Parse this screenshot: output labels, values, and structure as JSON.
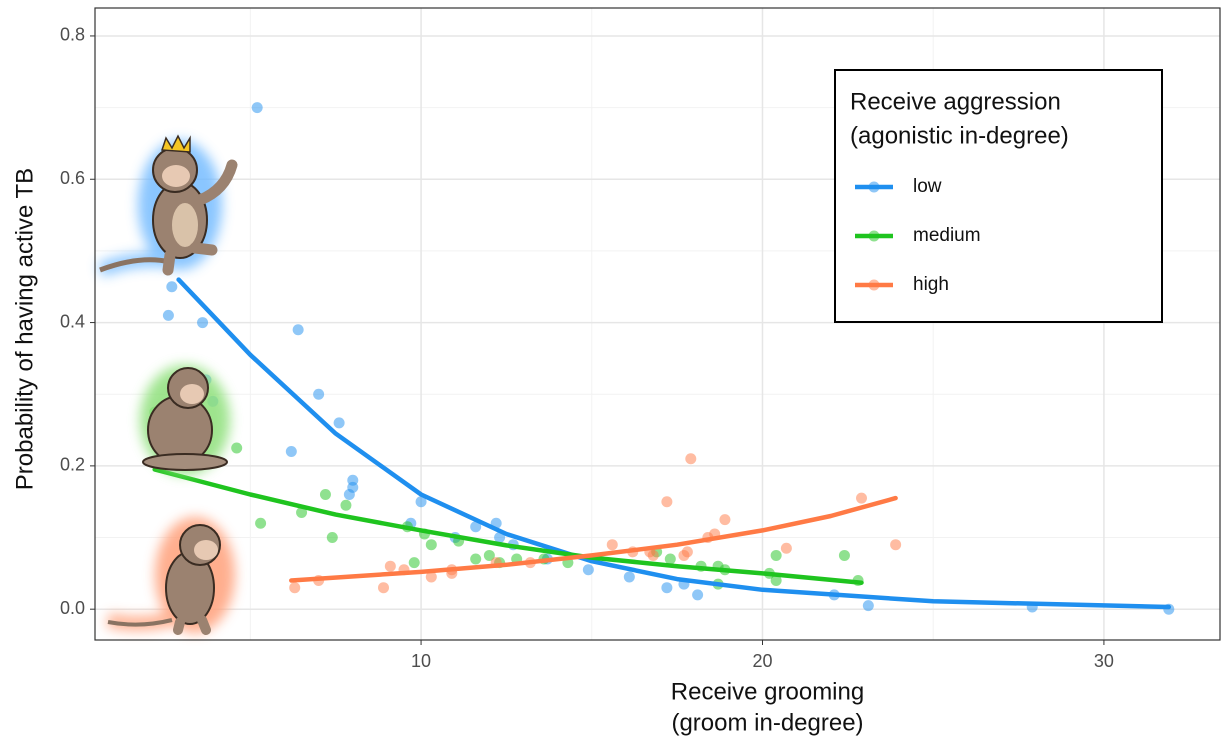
{
  "chart_data": {
    "type": "scatter",
    "x_label": [
      "Receive grooming",
      "(groom in-degree)"
    ],
    "y_label": "Probability of having active TB",
    "legend_title": [
      "Receive aggression",
      "(agonistic in-degree)"
    ],
    "legend_position": "top-right",
    "grid": true,
    "xlim": [
      0.45,
      33.4
    ],
    "ylim": [
      -0.043,
      0.839
    ],
    "xticks": [
      10,
      20,
      30
    ],
    "yticks": [
      {
        "value": 0,
        "label": "0.0"
      },
      0.2,
      0.4,
      0.6,
      0.8
    ],
    "x_minor_ticks": [
      5,
      15,
      25
    ],
    "y_minor_ticks": [
      0.1,
      0.3,
      0.5,
      0.7
    ],
    "series": [
      {
        "name": "low",
        "color": "#1f8fef",
        "x": [
          5.2,
          2.7,
          2.6,
          3.6,
          6.4,
          3.7,
          3.9,
          7.0,
          7.6,
          6.2,
          8.0,
          8.0,
          7.9,
          9.7,
          10.0,
          11.6,
          12.2,
          12.3,
          12.7,
          11.0,
          13.7,
          14.9,
          16.1,
          17.2,
          17.7,
          18.1,
          22.1,
          23.1,
          27.9,
          31.9
        ],
        "y": [
          0.7,
          0.45,
          0.41,
          0.4,
          0.39,
          0.32,
          0.29,
          0.3,
          0.26,
          0.22,
          0.18,
          0.17,
          0.16,
          0.12,
          0.15,
          0.115,
          0.12,
          0.1,
          0.09,
          0.1,
          0.07,
          0.055,
          0.045,
          0.03,
          0.035,
          0.02,
          0.02,
          0.005,
          0.003,
          0.0
        ],
        "fit_x": [
          2.9,
          5,
          7.5,
          10,
          12.5,
          15,
          17.5,
          20,
          25,
          31.9
        ],
        "fit_y": [
          0.46,
          0.355,
          0.245,
          0.16,
          0.105,
          0.067,
          0.042,
          0.027,
          0.011,
          0.003
        ]
      },
      {
        "name": "medium",
        "color": "#1fc41f",
        "x": [
          2.2,
          4.6,
          5.3,
          6.5,
          7.2,
          7.4,
          7.8,
          9.6,
          9.8,
          10.3,
          10.1,
          11.1,
          11.6,
          12.0,
          12.3,
          12.8,
          13.6,
          14.3,
          16.9,
          17.3,
          18.2,
          18.7,
          18.9,
          18.7,
          20.2,
          20.4,
          20.4,
          22.4,
          22.8
        ],
        "y": [
          0.275,
          0.225,
          0.12,
          0.135,
          0.16,
          0.1,
          0.145,
          0.115,
          0.065,
          0.09,
          0.105,
          0.095,
          0.07,
          0.075,
          0.065,
          0.07,
          0.07,
          0.065,
          0.08,
          0.07,
          0.06,
          0.06,
          0.055,
          0.035,
          0.05,
          0.075,
          0.04,
          0.075,
          0.04
        ],
        "fit_x": [
          2.2,
          5,
          7.5,
          10,
          12.5,
          15,
          17.5,
          20,
          22.9
        ],
        "fit_y": [
          0.195,
          0.16,
          0.132,
          0.11,
          0.089,
          0.072,
          0.06,
          0.05,
          0.037
        ]
      },
      {
        "name": "high",
        "color": "#ff7a45",
        "x": [
          6.3,
          7.0,
          8.9,
          9.1,
          9.5,
          10.3,
          10.9,
          10.9,
          12.2,
          13.2,
          15.6,
          16.2,
          16.7,
          16.8,
          17.2,
          17.7,
          17.8,
          17.9,
          18.4,
          18.6,
          18.9,
          20.7,
          22.9,
          23.9
        ],
        "y": [
          0.03,
          0.04,
          0.03,
          0.06,
          0.055,
          0.045,
          0.05,
          0.055,
          0.065,
          0.065,
          0.09,
          0.08,
          0.08,
          0.075,
          0.15,
          0.075,
          0.08,
          0.21,
          0.1,
          0.105,
          0.125,
          0.085,
          0.155,
          0.09
        ],
        "fit_x": [
          6.2,
          10,
          12.5,
          15,
          17.5,
          20,
          22,
          23.9
        ],
        "fit_y": [
          0.04,
          0.052,
          0.062,
          0.075,
          0.09,
          0.11,
          0.13,
          0.155
        ]
      }
    ]
  }
}
